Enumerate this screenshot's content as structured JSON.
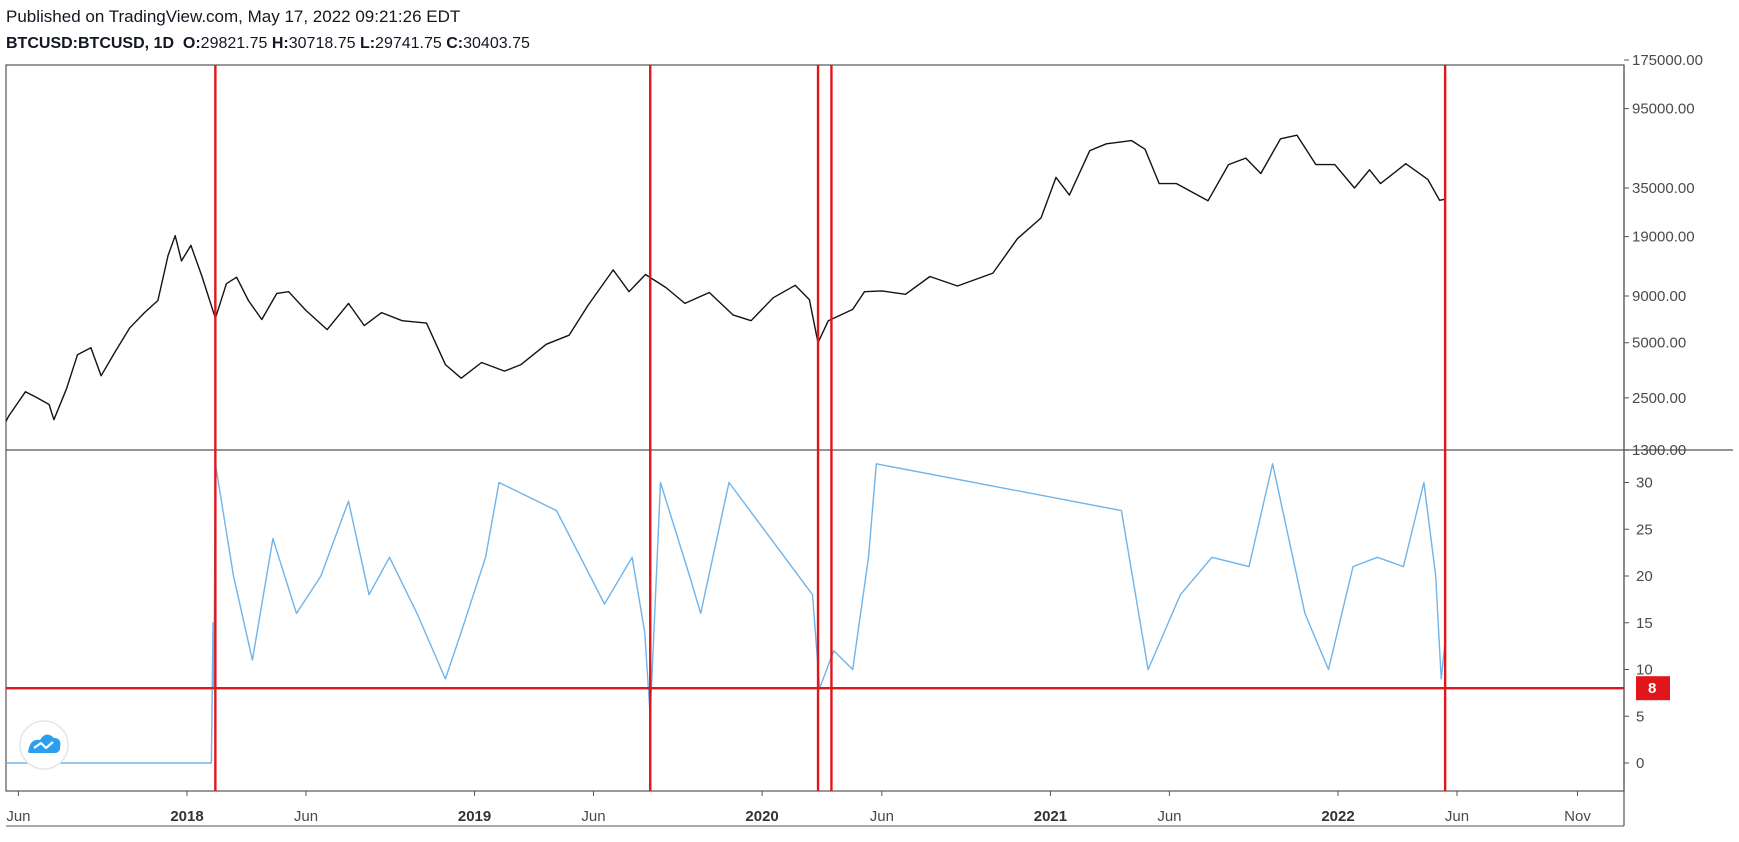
{
  "header": {
    "published": "Published on TradingView.com, May 17, 2022 09:21:26 EDT",
    "symbol": "BTCUSD:BTCUSD, 1D",
    "o_label": "O:",
    "o_value": "29821.75",
    "h_label": "H:",
    "h_value": "30718.75",
    "l_label": "L:",
    "l_value": "29741.75",
    "c_label": "C:",
    "c_value": "30403.75"
  },
  "colors": {
    "price_line": "#131313",
    "indicator_line": "#6fb4ea",
    "marker_lines": "#e0161a",
    "threshold_line": "#e0161a",
    "badge_bg": "#e0161a",
    "grid_frame": "#555555"
  },
  "chart_data": [
    {
      "type": "line",
      "series": [
        {
          "values": [
            [
              "2017-05-01",
              1400
            ],
            [
              "2017-05-20",
              2000
            ],
            [
              "2017-06-10",
              2700
            ],
            [
              "2017-06-25",
              2500
            ],
            [
              "2017-07-10",
              2300
            ],
            [
              "2017-07-16",
              1900
            ],
            [
              "2017-08-01",
              2800
            ],
            [
              "2017-08-15",
              4300
            ],
            [
              "2017-09-01",
              4700
            ],
            [
              "2017-09-14",
              3300
            ],
            [
              "2017-10-01",
              4400
            ],
            [
              "2017-10-20",
              6000
            ],
            [
              "2017-11-08",
              7300
            ],
            [
              "2017-11-25",
              8500
            ],
            [
              "2017-12-08",
              15000
            ],
            [
              "2017-12-17",
              19200
            ],
            [
              "2017-12-25",
              14000
            ],
            [
              "2018-01-06",
              17000
            ],
            [
              "2018-01-20",
              11500
            ],
            [
              "2018-02-06",
              6800
            ],
            [
              "2018-02-20",
              10500
            ],
            [
              "2018-03-05",
              11400
            ],
            [
              "2018-03-20",
              8500
            ],
            [
              "2018-04-06",
              6700
            ],
            [
              "2018-04-25",
              9300
            ],
            [
              "2018-05-10",
              9500
            ],
            [
              "2018-06-01",
              7500
            ],
            [
              "2018-06-28",
              5900
            ],
            [
              "2018-07-25",
              8200
            ],
            [
              "2018-08-14",
              6200
            ],
            [
              "2018-09-05",
              7300
            ],
            [
              "2018-10-01",
              6600
            ],
            [
              "2018-11-01",
              6400
            ],
            [
              "2018-11-25",
              3800
            ],
            [
              "2018-12-15",
              3200
            ],
            [
              "2019-01-10",
              3900
            ],
            [
              "2019-02-08",
              3500
            ],
            [
              "2019-03-01",
              3800
            ],
            [
              "2019-04-02",
              4900
            ],
            [
              "2019-05-01",
              5500
            ],
            [
              "2019-05-25",
              8000
            ],
            [
              "2019-06-26",
              12500
            ],
            [
              "2019-07-16",
              9500
            ],
            [
              "2019-08-06",
              11800
            ],
            [
              "2019-09-01",
              10000
            ],
            [
              "2019-09-25",
              8200
            ],
            [
              "2019-10-26",
              9400
            ],
            [
              "2019-11-25",
              7100
            ],
            [
              "2019-12-18",
              6600
            ],
            [
              "2020-01-15",
              8800
            ],
            [
              "2020-02-12",
              10300
            ],
            [
              "2020-03-01",
              8600
            ],
            [
              "2020-03-12",
              5000
            ],
            [
              "2020-03-25",
              6600
            ],
            [
              "2020-04-25",
              7600
            ],
            [
              "2020-05-10",
              9500
            ],
            [
              "2020-06-01",
              9600
            ],
            [
              "2020-07-01",
              9200
            ],
            [
              "2020-08-01",
              11500
            ],
            [
              "2020-09-05",
              10200
            ],
            [
              "2020-10-20",
              12000
            ],
            [
              "2020-11-20",
              18500
            ],
            [
              "2020-12-20",
              24000
            ],
            [
              "2021-01-08",
              40000
            ],
            [
              "2021-01-25",
              32000
            ],
            [
              "2021-02-20",
              56000
            ],
            [
              "2021-03-13",
              61000
            ],
            [
              "2021-04-14",
              63500
            ],
            [
              "2021-05-01",
              57000
            ],
            [
              "2021-05-19",
              37000
            ],
            [
              "2021-06-10",
              37000
            ],
            [
              "2021-07-20",
              29800
            ],
            [
              "2021-08-15",
              47000
            ],
            [
              "2021-09-06",
              51000
            ],
            [
              "2021-09-25",
              42000
            ],
            [
              "2021-10-20",
              65000
            ],
            [
              "2021-11-10",
              68000
            ],
            [
              "2021-12-04",
              47000
            ],
            [
              "2021-12-28",
              47000
            ],
            [
              "2022-01-22",
              35000
            ],
            [
              "2022-02-10",
              44000
            ],
            [
              "2022-02-24",
              37000
            ],
            [
              "2022-03-28",
              47500
            ],
            [
              "2022-04-25",
              39000
            ],
            [
              "2022-05-10",
              30000
            ],
            [
              "2022-05-17",
              30400
            ]
          ]
        }
      ],
      "y_scale": "log",
      "y_ticks": [
        "175000.00",
        "95000.00",
        "35000.00",
        "19000.00",
        "9000.00",
        "5000.00",
        "2500.00",
        "1300.00"
      ],
      "x_ticks": [
        "Jun",
        "2018",
        "Jun",
        "2019",
        "Jun",
        "2020",
        "Jun",
        "2021",
        "Jun",
        "2022",
        "Jun",
        "Nov"
      ]
    },
    {
      "type": "line",
      "series": [
        {
          "values": [
            [
              "2017-05-15",
              0
            ],
            [
              "2018-02-01",
              0
            ],
            [
              "2018-02-03",
              15
            ],
            [
              "2018-02-04",
              8
            ],
            [
              "2018-02-06",
              32
            ],
            [
              "2018-03-01",
              20
            ],
            [
              "2018-03-25",
              11
            ],
            [
              "2018-04-20",
              24
            ],
            [
              "2018-05-20",
              16
            ],
            [
              "2018-06-20",
              20
            ],
            [
              "2018-07-25",
              28
            ],
            [
              "2018-08-20",
              18
            ],
            [
              "2018-09-15",
              22
            ],
            [
              "2018-10-20",
              16
            ],
            [
              "2018-11-25",
              9
            ],
            [
              "2018-12-15",
              14
            ],
            [
              "2019-01-15",
              22
            ],
            [
              "2019-02-01",
              30
            ],
            [
              "2019-04-15",
              27
            ],
            [
              "2019-06-15",
              17
            ],
            [
              "2019-07-20",
              22
            ],
            [
              "2019-08-05",
              14
            ],
            [
              "2019-08-12",
              5
            ],
            [
              "2019-08-25",
              30
            ],
            [
              "2019-10-01",
              20
            ],
            [
              "2019-10-15",
              16
            ],
            [
              "2019-11-20",
              30
            ],
            [
              "2020-03-05",
              18
            ],
            [
              "2020-03-14",
              8
            ],
            [
              "2020-04-01",
              12
            ],
            [
              "2020-04-25",
              10
            ],
            [
              "2020-05-15",
              22
            ],
            [
              "2020-05-25",
              32
            ],
            [
              "2021-04-01",
              27
            ],
            [
              "2021-05-05",
              10
            ],
            [
              "2021-06-15",
              18
            ],
            [
              "2021-07-25",
              22
            ],
            [
              "2021-09-10",
              21
            ],
            [
              "2021-10-10",
              32
            ],
            [
              "2021-11-20",
              16
            ],
            [
              "2021-12-20",
              10
            ],
            [
              "2022-01-20",
              21
            ],
            [
              "2022-02-20",
              22
            ],
            [
              "2022-03-25",
              21
            ],
            [
              "2022-04-20",
              30
            ],
            [
              "2022-05-05",
              20
            ],
            [
              "2022-05-12",
              9
            ],
            [
              "2022-05-17",
              13
            ]
          ]
        }
      ],
      "y_ticks": [
        "30",
        "25",
        "20",
        "15",
        "10",
        "5",
        "0"
      ],
      "threshold": 8,
      "threshold_label": "8"
    }
  ],
  "markers": [
    "2018-02-06",
    "2019-08-12",
    "2020-03-12",
    "2020-03-29",
    "2022-05-17"
  ]
}
